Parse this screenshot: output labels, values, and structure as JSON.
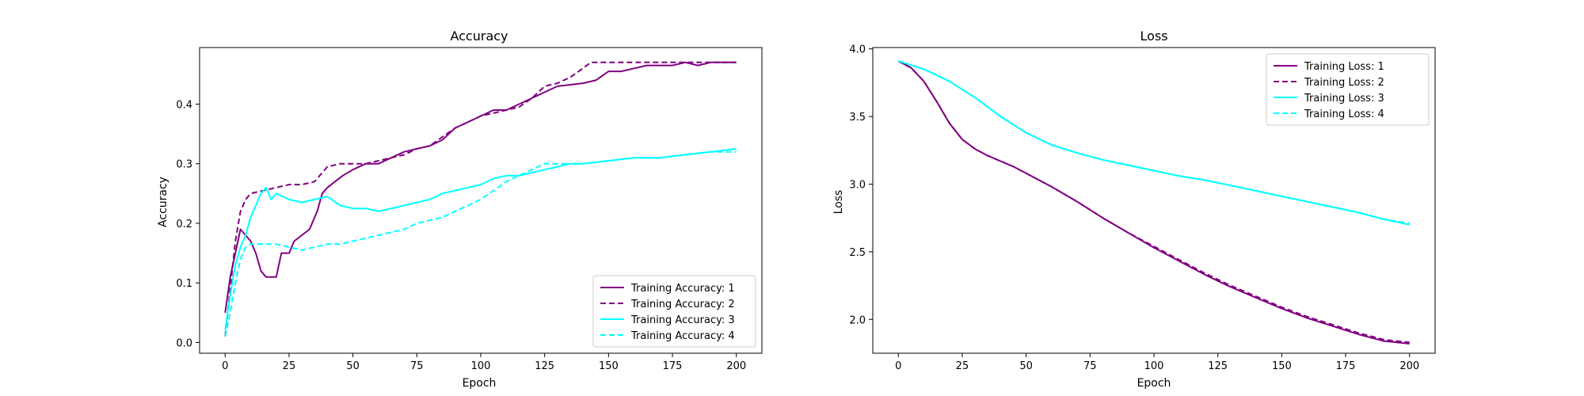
{
  "figure": {
    "background": "#ffffff"
  },
  "chart_data": [
    {
      "type": "line",
      "title": "Accuracy",
      "xlabel": "Epoch",
      "ylabel": "Accuracy",
      "xlim": [
        -10,
        210
      ],
      "ylim": [
        -0.018,
        0.495
      ],
      "xticks": [
        0,
        25,
        50,
        75,
        100,
        125,
        150,
        175,
        200
      ],
      "yticks": [
        0.0,
        0.1,
        0.2,
        0.3,
        0.4
      ],
      "ytick_format": 1,
      "grid": false,
      "legend_position": "lower-right",
      "series": [
        {
          "name": "Training Accuracy: 1",
          "color": "#800080",
          "linestyle": "solid",
          "points": [
            [
              0,
              0.05
            ],
            [
              2,
              0.11
            ],
            [
              4,
              0.15
            ],
            [
              6,
              0.19
            ],
            [
              8,
              0.18
            ],
            [
              10,
              0.17
            ],
            [
              12,
              0.15
            ],
            [
              14,
              0.12
            ],
            [
              16,
              0.11
            ],
            [
              18,
              0.11
            ],
            [
              20,
              0.11
            ],
            [
              22,
              0.15
            ],
            [
              25,
              0.15
            ],
            [
              27,
              0.17
            ],
            [
              30,
              0.18
            ],
            [
              33,
              0.19
            ],
            [
              36,
              0.22
            ],
            [
              38,
              0.25
            ],
            [
              40,
              0.26
            ],
            [
              43,
              0.27
            ],
            [
              46,
              0.28
            ],
            [
              50,
              0.29
            ],
            [
              55,
              0.3
            ],
            [
              60,
              0.3
            ],
            [
              65,
              0.31
            ],
            [
              70,
              0.32
            ],
            [
              75,
              0.325
            ],
            [
              80,
              0.33
            ],
            [
              85,
              0.34
            ],
            [
              90,
              0.36
            ],
            [
              95,
              0.37
            ],
            [
              100,
              0.38
            ],
            [
              105,
              0.39
            ],
            [
              110,
              0.39
            ],
            [
              115,
              0.4
            ],
            [
              120,
              0.41
            ],
            [
              125,
              0.42
            ],
            [
              130,
              0.43
            ],
            [
              140,
              0.435
            ],
            [
              145,
              0.44
            ],
            [
              150,
              0.455
            ],
            [
              155,
              0.455
            ],
            [
              160,
              0.46
            ],
            [
              165,
              0.465
            ],
            [
              170,
              0.465
            ],
            [
              175,
              0.465
            ],
            [
              180,
              0.47
            ],
            [
              185,
              0.465
            ],
            [
              190,
              0.47
            ],
            [
              195,
              0.47
            ],
            [
              200,
              0.47
            ]
          ]
        },
        {
          "name": "Training Accuracy: 2",
          "color": "#800080",
          "linestyle": "dashed",
          "points": [
            [
              0,
              0.01
            ],
            [
              2,
              0.09
            ],
            [
              4,
              0.17
            ],
            [
              6,
              0.22
            ],
            [
              8,
              0.24
            ],
            [
              10,
              0.25
            ],
            [
              15,
              0.255
            ],
            [
              20,
              0.26
            ],
            [
              25,
              0.265
            ],
            [
              30,
              0.265
            ],
            [
              35,
              0.27
            ],
            [
              38,
              0.285
            ],
            [
              40,
              0.295
            ],
            [
              45,
              0.3
            ],
            [
              50,
              0.3
            ],
            [
              55,
              0.3
            ],
            [
              60,
              0.305
            ],
            [
              65,
              0.31
            ],
            [
              70,
              0.315
            ],
            [
              75,
              0.325
            ],
            [
              80,
              0.33
            ],
            [
              85,
              0.345
            ],
            [
              90,
              0.36
            ],
            [
              95,
              0.37
            ],
            [
              100,
              0.38
            ],
            [
              105,
              0.385
            ],
            [
              110,
              0.39
            ],
            [
              115,
              0.395
            ],
            [
              120,
              0.41
            ],
            [
              125,
              0.43
            ],
            [
              130,
              0.435
            ],
            [
              135,
              0.445
            ],
            [
              140,
              0.46
            ],
            [
              143,
              0.47
            ],
            [
              150,
              0.47
            ],
            [
              160,
              0.47
            ],
            [
              170,
              0.47
            ],
            [
              180,
              0.47
            ],
            [
              190,
              0.47
            ],
            [
              200,
              0.47
            ]
          ]
        },
        {
          "name": "Training Accuracy: 3",
          "color": "#00ffff",
          "linestyle": "solid",
          "points": [
            [
              0,
              0.02
            ],
            [
              2,
              0.08
            ],
            [
              4,
              0.13
            ],
            [
              6,
              0.16
            ],
            [
              8,
              0.18
            ],
            [
              10,
              0.21
            ],
            [
              12,
              0.23
            ],
            [
              14,
              0.25
            ],
            [
              16,
              0.26
            ],
            [
              18,
              0.24
            ],
            [
              20,
              0.25
            ],
            [
              25,
              0.24
            ],
            [
              30,
              0.235
            ],
            [
              35,
              0.24
            ],
            [
              40,
              0.245
            ],
            [
              45,
              0.23
            ],
            [
              50,
              0.225
            ],
            [
              55,
              0.225
            ],
            [
              60,
              0.22
            ],
            [
              65,
              0.225
            ],
            [
              70,
              0.23
            ],
            [
              75,
              0.235
            ],
            [
              80,
              0.24
            ],
            [
              85,
              0.25
            ],
            [
              90,
              0.255
            ],
            [
              95,
              0.26
            ],
            [
              100,
              0.265
            ],
            [
              105,
              0.275
            ],
            [
              110,
              0.28
            ],
            [
              115,
              0.28
            ],
            [
              120,
              0.285
            ],
            [
              125,
              0.29
            ],
            [
              130,
              0.295
            ],
            [
              135,
              0.3
            ],
            [
              140,
              0.3
            ],
            [
              150,
              0.305
            ],
            [
              160,
              0.31
            ],
            [
              170,
              0.31
            ],
            [
              180,
              0.315
            ],
            [
              190,
              0.32
            ],
            [
              200,
              0.325
            ]
          ]
        },
        {
          "name": "Training Accuracy: 4",
          "color": "#00ffff",
          "linestyle": "dashed",
          "points": [
            [
              0,
              0.01
            ],
            [
              2,
              0.05
            ],
            [
              4,
              0.1
            ],
            [
              6,
              0.14
            ],
            [
              8,
              0.16
            ],
            [
              10,
              0.165
            ],
            [
              15,
              0.165
            ],
            [
              20,
              0.165
            ],
            [
              25,
              0.16
            ],
            [
              30,
              0.155
            ],
            [
              35,
              0.16
            ],
            [
              40,
              0.165
            ],
            [
              45,
              0.165
            ],
            [
              50,
              0.17
            ],
            [
              55,
              0.175
            ],
            [
              60,
              0.18
            ],
            [
              65,
              0.185
            ],
            [
              70,
              0.19
            ],
            [
              75,
              0.2
            ],
            [
              80,
              0.205
            ],
            [
              85,
              0.21
            ],
            [
              90,
              0.22
            ],
            [
              95,
              0.23
            ],
            [
              100,
              0.24
            ],
            [
              105,
              0.255
            ],
            [
              110,
              0.27
            ],
            [
              115,
              0.28
            ],
            [
              120,
              0.29
            ],
            [
              125,
              0.3
            ],
            [
              130,
              0.3
            ],
            [
              140,
              0.3
            ],
            [
              150,
              0.305
            ],
            [
              160,
              0.31
            ],
            [
              170,
              0.31
            ],
            [
              180,
              0.315
            ],
            [
              190,
              0.32
            ],
            [
              200,
              0.32
            ]
          ]
        }
      ]
    },
    {
      "type": "line",
      "title": "Loss",
      "xlabel": "Epoch",
      "ylabel": "Loss",
      "xlim": [
        -10,
        210
      ],
      "ylim": [
        1.75,
        4.01
      ],
      "xticks": [
        0,
        25,
        50,
        75,
        100,
        125,
        150,
        175,
        200
      ],
      "yticks": [
        2.0,
        2.5,
        3.0,
        3.5,
        4.0
      ],
      "ytick_format": 1,
      "grid": false,
      "legend_position": "upper-right",
      "series": [
        {
          "name": "Training Loss: 1",
          "color": "#800080",
          "linestyle": "solid",
          "points": [
            [
              0,
              3.91
            ],
            [
              5,
              3.86
            ],
            [
              10,
              3.76
            ],
            [
              15,
              3.61
            ],
            [
              20,
              3.45
            ],
            [
              25,
              3.33
            ],
            [
              30,
              3.26
            ],
            [
              35,
              3.21
            ],
            [
              40,
              3.17
            ],
            [
              45,
              3.13
            ],
            [
              50,
              3.08
            ],
            [
              60,
              2.98
            ],
            [
              70,
              2.87
            ],
            [
              80,
              2.75
            ],
            [
              90,
              2.64
            ],
            [
              100,
              2.53
            ],
            [
              110,
              2.43
            ],
            [
              120,
              2.33
            ],
            [
              130,
              2.24
            ],
            [
              140,
              2.16
            ],
            [
              150,
              2.08
            ],
            [
              160,
              2.01
            ],
            [
              170,
              1.95
            ],
            [
              180,
              1.89
            ],
            [
              190,
              1.84
            ],
            [
              200,
              1.82
            ]
          ]
        },
        {
          "name": "Training Loss: 2",
          "color": "#800080",
          "linestyle": "dashed",
          "points": [
            [
              0,
              3.91
            ],
            [
              5,
              3.86
            ],
            [
              10,
              3.76
            ],
            [
              15,
              3.61
            ],
            [
              20,
              3.45
            ],
            [
              25,
              3.33
            ],
            [
              30,
              3.26
            ],
            [
              35,
              3.21
            ],
            [
              40,
              3.17
            ],
            [
              45,
              3.13
            ],
            [
              50,
              3.08
            ],
            [
              60,
              2.98
            ],
            [
              70,
              2.87
            ],
            [
              80,
              2.75
            ],
            [
              90,
              2.64
            ],
            [
              100,
              2.54
            ],
            [
              110,
              2.44
            ],
            [
              120,
              2.34
            ],
            [
              130,
              2.25
            ],
            [
              140,
              2.17
            ],
            [
              150,
              2.09
            ],
            [
              160,
              2.02
            ],
            [
              170,
              1.96
            ],
            [
              180,
              1.9
            ],
            [
              190,
              1.85
            ],
            [
              200,
              1.83
            ]
          ]
        },
        {
          "name": "Training Loss: 3",
          "color": "#00ffff",
          "linestyle": "solid",
          "points": [
            [
              0,
              3.91
            ],
            [
              10,
              3.85
            ],
            [
              20,
              3.76
            ],
            [
              30,
              3.64
            ],
            [
              40,
              3.5
            ],
            [
              50,
              3.38
            ],
            [
              60,
              3.29
            ],
            [
              70,
              3.23
            ],
            [
              80,
              3.18
            ],
            [
              90,
              3.14
            ],
            [
              100,
              3.1
            ],
            [
              110,
              3.06
            ],
            [
              120,
              3.03
            ],
            [
              130,
              2.99
            ],
            [
              140,
              2.95
            ],
            [
              150,
              2.91
            ],
            [
              160,
              2.87
            ],
            [
              170,
              2.83
            ],
            [
              180,
              2.79
            ],
            [
              190,
              2.74
            ],
            [
              200,
              2.7
            ]
          ]
        },
        {
          "name": "Training Loss: 4",
          "color": "#00ffff",
          "linestyle": "dashed",
          "points": [
            [
              0,
              3.91
            ],
            [
              10,
              3.85
            ],
            [
              20,
              3.76
            ],
            [
              30,
              3.64
            ],
            [
              40,
              3.5
            ],
            [
              50,
              3.38
            ],
            [
              60,
              3.29
            ],
            [
              70,
              3.23
            ],
            [
              80,
              3.18
            ],
            [
              90,
              3.14
            ],
            [
              100,
              3.1
            ],
            [
              110,
              3.06
            ],
            [
              120,
              3.03
            ],
            [
              130,
              2.99
            ],
            [
              140,
              2.95
            ],
            [
              150,
              2.91
            ],
            [
              160,
              2.87
            ],
            [
              170,
              2.83
            ],
            [
              180,
              2.79
            ],
            [
              190,
              2.74
            ],
            [
              200,
              2.71
            ]
          ]
        }
      ]
    }
  ]
}
